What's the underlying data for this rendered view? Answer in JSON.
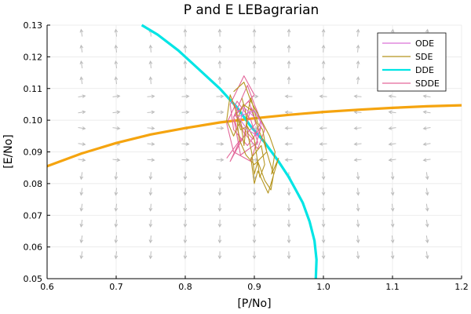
{
  "chart_data": {
    "type": "line",
    "title": "P and E LEBagrarian",
    "xlabel": "[P/No]",
    "ylabel": "[E/No]",
    "xlim": [
      0.6,
      1.2
    ],
    "ylim": [
      0.05,
      0.13
    ],
    "xticks": [
      "0.6",
      "0.7",
      "0.8",
      "0.9",
      "1.0",
      "1.1",
      "1.2"
    ],
    "yticks": [
      "0.05",
      "0.06",
      "0.07",
      "0.08",
      "0.09",
      "0.10",
      "0.11",
      "0.12",
      "0.13"
    ],
    "grid": true,
    "legend": {
      "position": "top-right",
      "entries": [
        "ODE",
        "SDE",
        "DDE",
        "SDDE"
      ]
    },
    "series": [
      {
        "name": "ODE",
        "color": "#da70d6",
        "x": [
          0.875,
          0.9,
          0.91,
          0.905,
          0.89,
          0.88,
          0.885,
          0.9
        ],
        "y": [
          0.101,
          0.103,
          0.099,
          0.095,
          0.097,
          0.1,
          0.104,
          0.101
        ]
      },
      {
        "name": "SDE",
        "color": "#b5951f",
        "x": [
          0.87,
          0.885,
          0.895,
          0.9,
          0.91,
          0.922,
          0.93,
          0.925,
          0.935,
          0.92,
          0.905,
          0.9,
          0.895,
          0.91,
          0.915,
          0.908,
          0.9,
          0.89,
          0.88,
          0.872,
          0.865,
          0.86,
          0.87,
          0.88,
          0.885,
          0.89,
          0.895,
          0.905,
          0.912,
          0.918,
          0.9,
          0.888,
          0.878,
          0.875,
          0.884,
          0.897,
          0.906,
          0.914,
          0.922,
          0.928,
          0.924,
          0.915,
          0.905,
          0.9,
          0.896,
          0.891,
          0.887,
          0.882
        ],
        "y": [
          0.109,
          0.112,
          0.106,
          0.104,
          0.1,
          0.095,
          0.09,
          0.083,
          0.088,
          0.077,
          0.084,
          0.08,
          0.088,
          0.092,
          0.086,
          0.082,
          0.094,
          0.098,
          0.097,
          0.104,
          0.108,
          0.1,
          0.095,
          0.1,
          0.092,
          0.102,
          0.107,
          0.099,
          0.097,
          0.09,
          0.086,
          0.089,
          0.094,
          0.1,
          0.105,
          0.103,
          0.097,
          0.093,
          0.087,
          0.083,
          0.078,
          0.081,
          0.087,
          0.083,
          0.09,
          0.095,
          0.103,
          0.107
        ]
      },
      {
        "name": "DDE",
        "color": "#00e5e5",
        "x": [
          0.737,
          0.76,
          0.79,
          0.82,
          0.85,
          0.875,
          0.895,
          0.915,
          0.935,
          0.95,
          0.96,
          0.97,
          0.98,
          0.987,
          0.99,
          0.989
        ],
        "y": [
          0.13,
          0.127,
          0.122,
          0.116,
          0.11,
          0.104,
          0.098,
          0.093,
          0.087,
          0.082,
          0.078,
          0.074,
          0.068,
          0.062,
          0.056,
          0.05
        ]
      },
      {
        "name": "SDDE",
        "color": "#e3679a",
        "x": [
          0.86,
          0.88,
          0.87,
          0.9,
          0.885,
          0.865,
          0.87,
          0.89,
          0.91,
          0.895,
          0.87,
          0.86,
          0.875,
          0.895,
          0.905,
          0.88,
          0.87,
          0.89,
          0.9,
          0.915,
          0.905,
          0.885,
          0.872,
          0.892,
          0.902,
          0.878,
          0.865,
          0.885,
          0.895,
          0.91,
          0.898,
          0.882,
          0.868,
          0.876
        ],
        "y": [
          0.088,
          0.094,
          0.101,
          0.108,
          0.114,
          0.105,
          0.097,
          0.092,
          0.098,
          0.087,
          0.09,
          0.099,
          0.106,
          0.1,
          0.093,
          0.089,
          0.101,
          0.111,
          0.105,
          0.097,
          0.091,
          0.096,
          0.102,
          0.106,
          0.099,
          0.093,
          0.087,
          0.095,
          0.104,
          0.1,
          0.094,
          0.098,
          0.106,
          0.103
        ]
      },
      {
        "name": "",
        "color": "#f5a40f",
        "x": [
          0.6,
          0.65,
          0.7,
          0.75,
          0.8,
          0.85,
          0.9,
          0.95,
          1.0,
          1.05,
          1.1,
          1.15,
          1.2
        ],
        "y": [
          0.0855,
          0.0895,
          0.0928,
          0.0955,
          0.0975,
          0.0993,
          0.1006,
          0.1017,
          0.1026,
          0.1033,
          0.1039,
          0.1044,
          0.1047
        ]
      }
    ],
    "quiver": {
      "color": "#bdbdbd",
      "grid_x": [
        0.65,
        0.7,
        0.75,
        0.8,
        0.85,
        0.9,
        0.95,
        1.0,
        1.05,
        1.1,
        1.15
      ],
      "grid_y": [
        0.0575,
        0.0625,
        0.0675,
        0.0725,
        0.0775,
        0.0825,
        0.0875,
        0.0925,
        0.0975,
        0.1025,
        0.1075,
        0.1125,
        0.1175,
        0.1225,
        0.1275
      ]
    }
  }
}
